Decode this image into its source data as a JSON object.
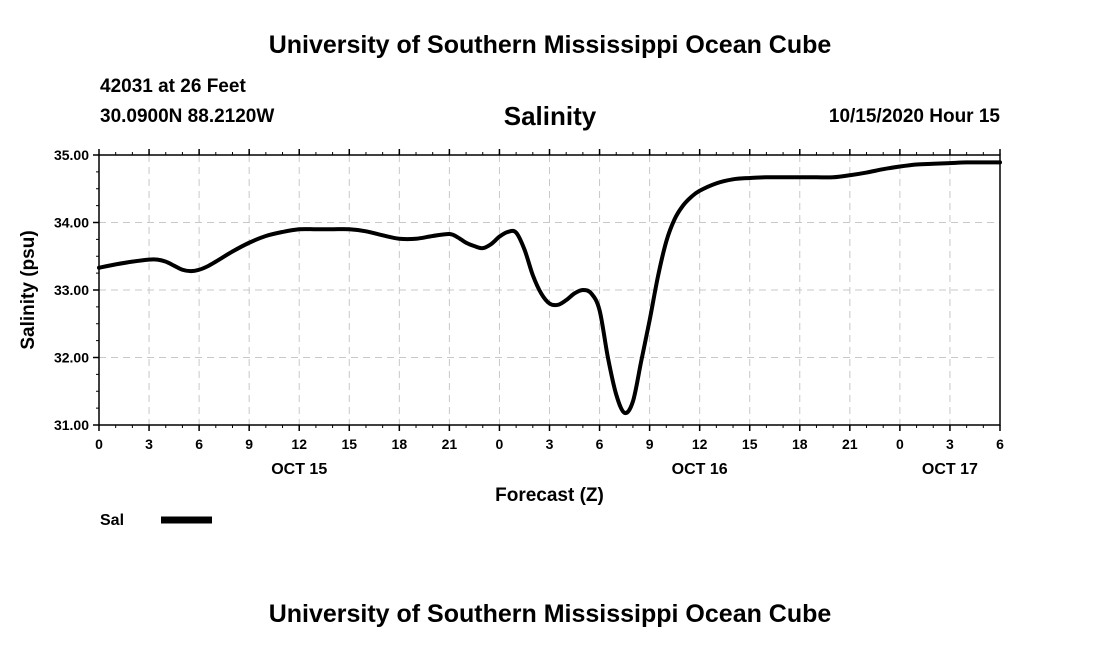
{
  "header": {
    "title": "University of Southern Mississippi Ocean Cube",
    "station": "42031 at 26 Feet",
    "coordinates": "30.0900N 88.2120W",
    "parameter": "Salinity",
    "datetime": "10/15/2020 Hour 15"
  },
  "footer": {
    "title": "University of Southern Mississippi Ocean Cube"
  },
  "chart_data": {
    "type": "line",
    "title": "Salinity",
    "xlabel": "Forecast (Z)",
    "ylabel": "Salinity (psu)",
    "ylim": [
      31.0,
      35.0
    ],
    "xlim": [
      0,
      54
    ],
    "y_ticks": [
      31.0,
      32.0,
      33.0,
      34.0,
      35.0
    ],
    "y_tick_labels": [
      "31.00",
      "32.00",
      "33.00",
      "34.00",
      "35.00"
    ],
    "x_ticks": [
      0,
      3,
      6,
      9,
      12,
      15,
      18,
      21,
      24,
      27,
      30,
      33,
      36,
      39,
      42,
      45,
      48,
      51,
      54
    ],
    "x_tick_labels": [
      "0",
      "3",
      "6",
      "9",
      "12",
      "15",
      "18",
      "21",
      "0",
      "3",
      "6",
      "9",
      "12",
      "15",
      "18",
      "21",
      "0",
      "3",
      "6"
    ],
    "date_labels": [
      {
        "x": 12,
        "label": "OCT 15"
      },
      {
        "x": 36,
        "label": "OCT 16"
      },
      {
        "x": 51,
        "label": "OCT 17"
      }
    ],
    "grid": true,
    "legend": {
      "placement": "bottom-left",
      "entries": [
        {
          "name": "Sal",
          "color": "#000000"
        }
      ]
    },
    "series": [
      {
        "name": "Sal",
        "color": "#000000",
        "x": [
          0,
          1,
          2,
          3,
          3.5,
          4,
          4.5,
          5,
          5.5,
          6,
          6.5,
          7,
          8,
          9,
          10,
          11,
          12,
          13,
          14,
          15,
          16,
          17,
          18,
          19,
          20,
          21,
          21.5,
          22,
          22.5,
          23,
          23.5,
          24,
          24.5,
          25,
          25.5,
          26,
          26.5,
          27,
          27.5,
          28,
          28.5,
          29,
          29.5,
          30,
          30.5,
          31,
          31.5,
          32,
          32.5,
          33,
          33.5,
          34,
          34.5,
          35,
          35.5,
          36,
          37,
          38,
          39,
          40,
          41,
          42,
          43,
          44,
          45,
          46,
          47,
          48,
          49,
          50,
          51,
          52,
          53,
          54
        ],
        "values": [
          33.33,
          33.38,
          33.42,
          33.45,
          33.45,
          33.42,
          33.36,
          33.3,
          33.28,
          33.3,
          33.35,
          33.42,
          33.57,
          33.7,
          33.8,
          33.86,
          33.9,
          33.9,
          33.9,
          33.9,
          33.87,
          33.81,
          33.76,
          33.76,
          33.8,
          33.83,
          33.78,
          33.7,
          33.65,
          33.62,
          33.68,
          33.79,
          33.86,
          33.85,
          33.6,
          33.22,
          32.95,
          32.8,
          32.78,
          32.85,
          32.95,
          33.0,
          32.95,
          32.7,
          32.0,
          31.45,
          31.18,
          31.35,
          31.95,
          32.55,
          33.2,
          33.72,
          34.05,
          34.25,
          34.38,
          34.47,
          34.58,
          34.64,
          34.66,
          34.67,
          34.67,
          34.67,
          34.67,
          34.67,
          34.7,
          34.74,
          34.79,
          34.83,
          34.86,
          34.87,
          34.88,
          34.89,
          34.89,
          34.89
        ]
      }
    ]
  }
}
